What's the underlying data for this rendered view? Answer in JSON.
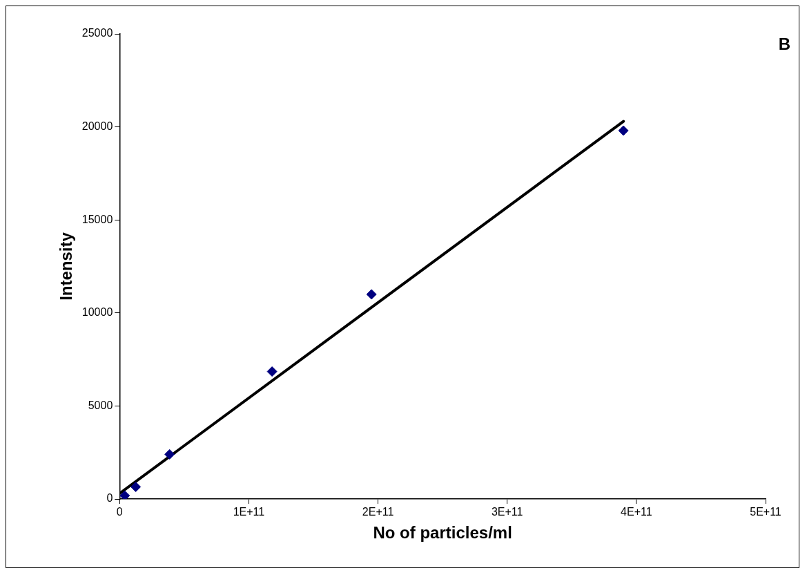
{
  "chart_data": {
    "type": "scatter",
    "xlabel": "No of particles/ml",
    "ylabel": "Intensity",
    "annotations": [
      "B"
    ],
    "xlim": [
      0,
      500000000000
    ],
    "ylim": [
      0,
      25000
    ],
    "xticks": [
      0,
      {
        "value": 100000000000,
        "label": "1E+11"
      },
      {
        "value": 200000000000,
        "label": "2E+11"
      },
      {
        "value": 300000000000,
        "label": "3E+11"
      },
      {
        "value": 400000000000,
        "label": "4E+11"
      },
      {
        "value": 500000000000,
        "label": "5E+11"
      }
    ],
    "yticks": [
      0,
      5000,
      10000,
      15000,
      20000,
      25000
    ],
    "grid": false,
    "legend": false,
    "series": [
      {
        "type": "scatter",
        "color": "#000080",
        "marker": "diamond",
        "x": [
          4000000000,
          12500000000,
          38700000000,
          118000000000,
          195000000000,
          390000000000
        ],
        "values": [
          180,
          650,
          2400,
          6850,
          11000,
          19800
        ]
      },
      {
        "type": "line",
        "color": "#000000",
        "marker": "none",
        "line_style": "solid",
        "x": [
          0,
          390000000000
        ],
        "values": [
          300,
          20300
        ]
      }
    ]
  }
}
